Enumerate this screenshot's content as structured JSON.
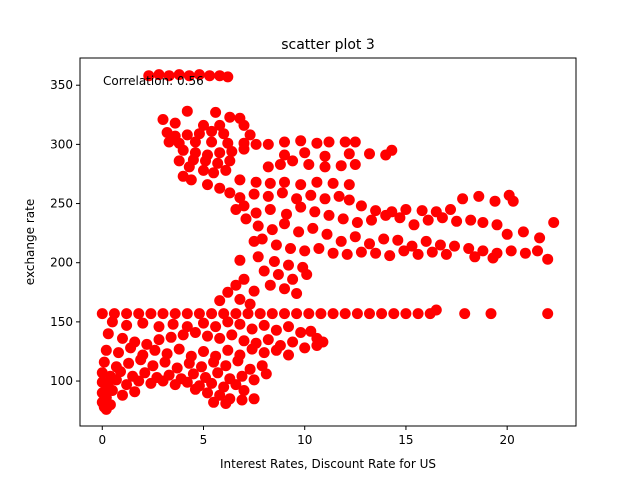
{
  "chart_data": {
    "type": "scatter",
    "title": "scatter plot 3",
    "xlabel": "Interest Rates, Discount Rate for US",
    "ylabel": "exchange rate",
    "xlim": [
      -1.1,
      23.4
    ],
    "ylim": [
      62,
      373
    ],
    "xticks": [
      0,
      5,
      10,
      15,
      20
    ],
    "yticks": [
      100,
      150,
      200,
      250,
      300,
      350
    ],
    "grid": false,
    "annotation": "Correlation: 0.56",
    "marker_color": "#ff0000",
    "points": [
      [
        2.3,
        358
      ],
      [
        2.8,
        359
      ],
      [
        3.3,
        358
      ],
      [
        3.8,
        359
      ],
      [
        4.3,
        358
      ],
      [
        4.8,
        359
      ],
      [
        5.3,
        358
      ],
      [
        5.8,
        358
      ],
      [
        6.2,
        357
      ],
      [
        4.2,
        328
      ],
      [
        5.6,
        327
      ],
      [
        6.3,
        323
      ],
      [
        6.8,
        322
      ],
      [
        3.0,
        321
      ],
      [
        3.6,
        318
      ],
      [
        5.0,
        316
      ],
      [
        5.8,
        316
      ],
      [
        7.0,
        316
      ],
      [
        3.2,
        310
      ],
      [
        3.6,
        307
      ],
      [
        4.2,
        308
      ],
      [
        4.8,
        309
      ],
      [
        5.4,
        311
      ],
      [
        6.0,
        309
      ],
      [
        7.3,
        308
      ],
      [
        3.3,
        302
      ],
      [
        3.8,
        301
      ],
      [
        4.6,
        302
      ],
      [
        5.4,
        302
      ],
      [
        6.2,
        301
      ],
      [
        7.0,
        301
      ],
      [
        7.6,
        300
      ],
      [
        8.2,
        300
      ],
      [
        9.0,
        302
      ],
      [
        9.8,
        303
      ],
      [
        10.6,
        301
      ],
      [
        11.2,
        302
      ],
      [
        12.0,
        302
      ],
      [
        12.5,
        302
      ],
      [
        4.0,
        295
      ],
      [
        4.6,
        293
      ],
      [
        5.2,
        291
      ],
      [
        5.8,
        293
      ],
      [
        6.4,
        294
      ],
      [
        7.0,
        296
      ],
      [
        3.8,
        286
      ],
      [
        4.5,
        287
      ],
      [
        5.1,
        286
      ],
      [
        5.7,
        284
      ],
      [
        6.3,
        286
      ],
      [
        9.0,
        291
      ],
      [
        10.0,
        293
      ],
      [
        11.0,
        290
      ],
      [
        12.2,
        292
      ],
      [
        4.3,
        281
      ],
      [
        5.0,
        278
      ],
      [
        5.5,
        276
      ],
      [
        6.1,
        278
      ],
      [
        8.2,
        281
      ],
      [
        8.8,
        283
      ],
      [
        9.4,
        286
      ],
      [
        10.2,
        283
      ],
      [
        11.0,
        281
      ],
      [
        11.8,
        282
      ],
      [
        12.5,
        283
      ],
      [
        13.2,
        292
      ],
      [
        14.0,
        291
      ],
      [
        14.3,
        295
      ],
      [
        4.0,
        273
      ],
      [
        4.4,
        270
      ],
      [
        6.8,
        270
      ],
      [
        7.6,
        268
      ],
      [
        8.3,
        267
      ],
      [
        9.0,
        268
      ],
      [
        9.8,
        266
      ],
      [
        10.6,
        268
      ],
      [
        11.4,
        267
      ],
      [
        12.2,
        266
      ],
      [
        5.2,
        266
      ],
      [
        5.8,
        263
      ],
      [
        6.3,
        259
      ],
      [
        6.8,
        255
      ],
      [
        7.5,
        258
      ],
      [
        8.2,
        256
      ],
      [
        8.9,
        259
      ],
      [
        9.6,
        254
      ],
      [
        10.3,
        257
      ],
      [
        11.0,
        254
      ],
      [
        11.7,
        256
      ],
      [
        12.2,
        253
      ],
      [
        12.8,
        248
      ],
      [
        13.5,
        244
      ],
      [
        14.3,
        243
      ],
      [
        15.0,
        245
      ],
      [
        15.8,
        244
      ],
      [
        16.5,
        243
      ],
      [
        17.2,
        245
      ],
      [
        17.8,
        254
      ],
      [
        18.6,
        256
      ],
      [
        19.4,
        252
      ],
      [
        20.1,
        257
      ],
      [
        20.3,
        252
      ],
      [
        7.0,
        248
      ],
      [
        7.6,
        242
      ],
      [
        8.3,
        245
      ],
      [
        9.1,
        241
      ],
      [
        9.8,
        247
      ],
      [
        10.5,
        243
      ],
      [
        11.2,
        240
      ],
      [
        11.9,
        237
      ],
      [
        12.6,
        234
      ],
      [
        13.3,
        236
      ],
      [
        14.0,
        240
      ],
      [
        14.7,
        238
      ],
      [
        15.4,
        232
      ],
      [
        16.1,
        236
      ],
      [
        16.8,
        238
      ],
      [
        17.5,
        235
      ],
      [
        18.2,
        236
      ],
      [
        18.8,
        234
      ],
      [
        19.5,
        232
      ],
      [
        20.0,
        224
      ],
      [
        20.8,
        226
      ],
      [
        21.6,
        221
      ],
      [
        22.3,
        234
      ],
      [
        6.6,
        245
      ],
      [
        7.1,
        237
      ],
      [
        7.7,
        231
      ],
      [
        8.4,
        228
      ],
      [
        9.0,
        233
      ],
      [
        9.7,
        226
      ],
      [
        10.4,
        229
      ],
      [
        11.1,
        224
      ],
      [
        11.8,
        218
      ],
      [
        12.5,
        222
      ],
      [
        13.2,
        216
      ],
      [
        13.9,
        220
      ],
      [
        14.6,
        219
      ],
      [
        15.3,
        214
      ],
      [
        16.0,
        218
      ],
      [
        16.7,
        215
      ],
      [
        17.4,
        214
      ],
      [
        18.1,
        212
      ],
      [
        18.8,
        210
      ],
      [
        19.5,
        208
      ],
      [
        20.2,
        210
      ],
      [
        20.9,
        208
      ],
      [
        21.5,
        210
      ],
      [
        22.0,
        203
      ],
      [
        7.9,
        220
      ],
      [
        8.6,
        215
      ],
      [
        9.3,
        212
      ],
      [
        10.0,
        210
      ],
      [
        10.7,
        212
      ],
      [
        11.4,
        208
      ],
      [
        12.1,
        207
      ],
      [
        12.8,
        209
      ],
      [
        13.5,
        208
      ],
      [
        14.2,
        206
      ],
      [
        14.9,
        210
      ],
      [
        15.6,
        207
      ],
      [
        16.3,
        209
      ],
      [
        17.0,
        207
      ],
      [
        18.4,
        205
      ],
      [
        19.3,
        204
      ],
      [
        6.8,
        202
      ],
      [
        7.7,
        205
      ],
      [
        8.5,
        201
      ],
      [
        9.2,
        198
      ],
      [
        9.9,
        196
      ],
      [
        7.5,
        218
      ],
      [
        8.0,
        193
      ],
      [
        8.7,
        190
      ],
      [
        9.4,
        186
      ],
      [
        10.1,
        190
      ],
      [
        8.3,
        181
      ],
      [
        9.0,
        178
      ],
      [
        9.6,
        174
      ],
      [
        7.5,
        176
      ],
      [
        7.0,
        186
      ],
      [
        6.6,
        181
      ],
      [
        6.2,
        175
      ],
      [
        6.8,
        169
      ],
      [
        7.3,
        165
      ],
      [
        5.8,
        168
      ],
      [
        0.0,
        157
      ],
      [
        0.6,
        157
      ],
      [
        1.2,
        157
      ],
      [
        1.8,
        157
      ],
      [
        2.4,
        157
      ],
      [
        3.0,
        157
      ],
      [
        3.6,
        157
      ],
      [
        4.2,
        157
      ],
      [
        4.8,
        157
      ],
      [
        5.4,
        157
      ],
      [
        6.0,
        157
      ],
      [
        6.6,
        157
      ],
      [
        7.2,
        157
      ],
      [
        7.8,
        157
      ],
      [
        8.4,
        157
      ],
      [
        9.0,
        157
      ],
      [
        9.6,
        157
      ],
      [
        10.2,
        157
      ],
      [
        10.8,
        157
      ],
      [
        11.4,
        157
      ],
      [
        12.0,
        157
      ],
      [
        12.6,
        157
      ],
      [
        13.2,
        157
      ],
      [
        13.8,
        157
      ],
      [
        14.4,
        157
      ],
      [
        15.0,
        157
      ],
      [
        15.6,
        157
      ],
      [
        16.2,
        157
      ],
      [
        16.5,
        160
      ],
      [
        17.9,
        157
      ],
      [
        19.2,
        157
      ],
      [
        22.0,
        157
      ],
      [
        0.5,
        150
      ],
      [
        1.2,
        147
      ],
      [
        2.0,
        149
      ],
      [
        2.8,
        146
      ],
      [
        3.5,
        148
      ],
      [
        4.2,
        146
      ],
      [
        5.0,
        149
      ],
      [
        5.6,
        146
      ],
      [
        6.2,
        150
      ],
      [
        6.8,
        148
      ],
      [
        7.4,
        144
      ],
      [
        8.0,
        147
      ],
      [
        8.6,
        143
      ],
      [
        9.2,
        146
      ],
      [
        9.8,
        141
      ],
      [
        10.3,
        142
      ],
      [
        10.6,
        136
      ],
      [
        10.9,
        133
      ],
      [
        0.3,
        140
      ],
      [
        1.0,
        136
      ],
      [
        1.6,
        133
      ],
      [
        2.2,
        131
      ],
      [
        2.8,
        135
      ],
      [
        3.4,
        137
      ],
      [
        4.0,
        139
      ],
      [
        4.6,
        141
      ],
      [
        5.2,
        138
      ],
      [
        5.8,
        136
      ],
      [
        6.4,
        139
      ],
      [
        7.0,
        134
      ],
      [
        7.6,
        132
      ],
      [
        8.2,
        135
      ],
      [
        8.8,
        130
      ],
      [
        9.4,
        133
      ],
      [
        10.0,
        128
      ],
      [
        10.6,
        130
      ],
      [
        0.2,
        126
      ],
      [
        0.8,
        124
      ],
      [
        1.4,
        128
      ],
      [
        2.0,
        122
      ],
      [
        2.6,
        126
      ],
      [
        3.2,
        123
      ],
      [
        3.8,
        127
      ],
      [
        4.4,
        121
      ],
      [
        5.0,
        125
      ],
      [
        5.6,
        121
      ],
      [
        6.2,
        126
      ],
      [
        6.8,
        122
      ],
      [
        7.4,
        127
      ],
      [
        8.0,
        124
      ],
      [
        8.6,
        126
      ],
      [
        9.2,
        122
      ],
      [
        0.1,
        116
      ],
      [
        0.7,
        112
      ],
      [
        1.3,
        115
      ],
      [
        1.9,
        118
      ],
      [
        2.5,
        113
      ],
      [
        3.1,
        116
      ],
      [
        3.7,
        111
      ],
      [
        4.3,
        115
      ],
      [
        4.9,
        112
      ],
      [
        5.5,
        116
      ],
      [
        6.1,
        113
      ],
      [
        6.7,
        117
      ],
      [
        7.3,
        110
      ],
      [
        7.9,
        113
      ],
      [
        8.1,
        106
      ],
      [
        0.0,
        107
      ],
      [
        0.4,
        104
      ],
      [
        0.9,
        108
      ],
      [
        1.5,
        104
      ],
      [
        2.1,
        107
      ],
      [
        2.7,
        103
      ],
      [
        3.3,
        105
      ],
      [
        3.9,
        102
      ],
      [
        4.5,
        106
      ],
      [
        5.1,
        103
      ],
      [
        5.7,
        107
      ],
      [
        6.3,
        102
      ],
      [
        6.9,
        104
      ],
      [
        7.5,
        101
      ],
      [
        0.0,
        99
      ],
      [
        0.3,
        96
      ],
      [
        0.7,
        101
      ],
      [
        1.2,
        97
      ],
      [
        1.8,
        100
      ],
      [
        2.4,
        98
      ],
      [
        3.0,
        100
      ],
      [
        3.6,
        97
      ],
      [
        4.2,
        99
      ],
      [
        4.8,
        96
      ],
      [
        5.4,
        98
      ],
      [
        6.0,
        95
      ],
      [
        6.6,
        97
      ],
      [
        7.0,
        92
      ],
      [
        0.0,
        90
      ],
      [
        0.2,
        86
      ],
      [
        0.5,
        92
      ],
      [
        1.0,
        88
      ],
      [
        1.6,
        91
      ],
      [
        4.6,
        93
      ],
      [
        5.2,
        90
      ],
      [
        5.8,
        88
      ],
      [
        6.3,
        85
      ],
      [
        6.9,
        84
      ],
      [
        0.0,
        82
      ],
      [
        0.1,
        78
      ],
      [
        0.2,
        76
      ],
      [
        0.4,
        80
      ],
      [
        5.5,
        82
      ],
      [
        6.1,
        81
      ],
      [
        7.5,
        85
      ]
    ]
  }
}
